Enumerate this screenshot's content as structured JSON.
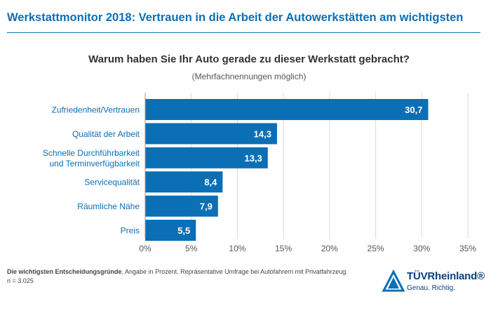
{
  "header": {
    "title": "Werkstattmonitor 2018: Vertrauen in die Arbeit der Autowerkstätten am wichtigsten"
  },
  "chart_data": {
    "type": "bar",
    "orientation": "horizontal",
    "title": "Warum haben Sie Ihr Auto gerade zu dieser Werkstatt gebracht?",
    "subtitle": "(Mehrfachnennungen möglich)",
    "categories": [
      [
        "Zufriedenheit/Vertrauen"
      ],
      [
        "Qualität der Arbeit"
      ],
      [
        "Schnelle Durchführbarkeit",
        "und Terminverfügbarkeit"
      ],
      [
        "Servicequalität"
      ],
      [
        "Räumliche Nähe"
      ],
      [
        "Preis"
      ]
    ],
    "values": [
      30.7,
      14.3,
      13.3,
      8.4,
      7.9,
      5.5
    ],
    "value_labels": [
      "30,7",
      "14,3",
      "13,3",
      "8,4",
      "7,9",
      "5,5"
    ],
    "xlim": [
      0,
      35
    ],
    "xticks": [
      0,
      5,
      10,
      15,
      20,
      25,
      30,
      35
    ],
    "xtick_labels": [
      "0%",
      "5%",
      "10%",
      "15%",
      "20%",
      "25%",
      "30%",
      "35%"
    ],
    "grid": true,
    "bar_color": "#0b6fb5"
  },
  "footnote": {
    "bold": "Die wichtigsten Entscheidungsgründe",
    "text": ", Angabe in Prozent. Repräsentative Umfrage bei Autofahrern mit Privatfahrzeug.",
    "n": "n = 3.025"
  },
  "logo": {
    "wordmark": "TÜVRheinland®",
    "tagline": "Genau. Richtig."
  },
  "colors": {
    "accent": "#0b6fb5",
    "logo": "#0b3f7e"
  }
}
